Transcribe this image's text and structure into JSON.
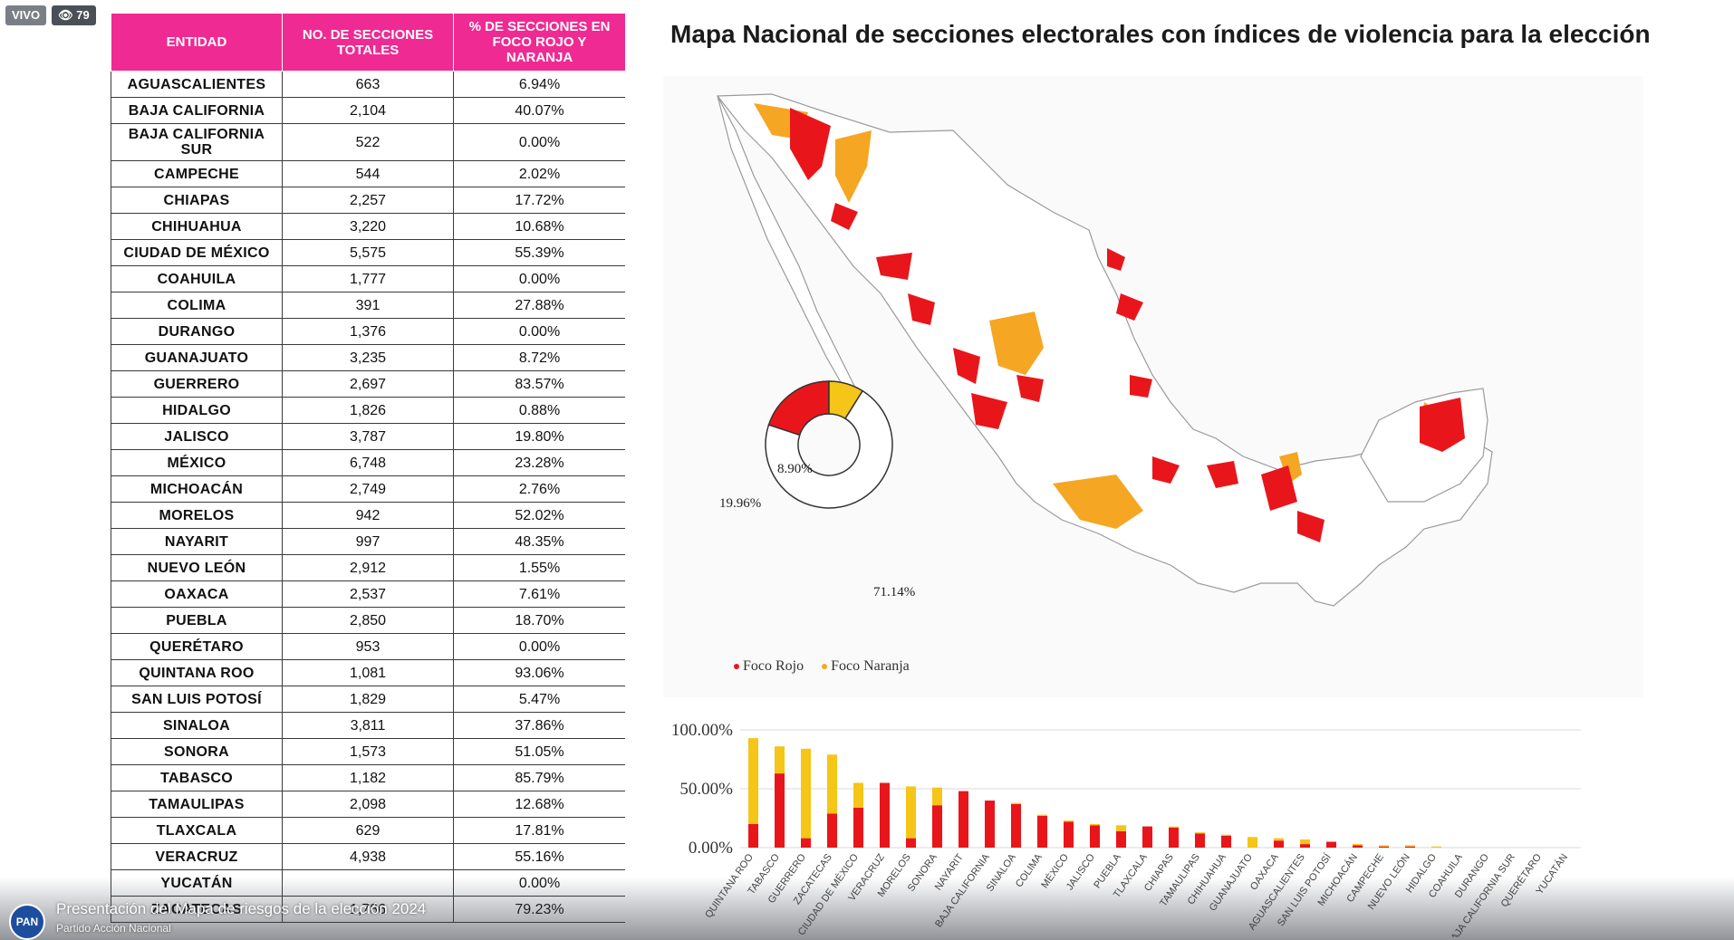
{
  "live": {
    "label": "VIVO",
    "viewers": "79",
    "viewers_icon": "eye-icon"
  },
  "table": {
    "headers": [
      "ENTIDAD",
      "NO. DE SECCIONES TOTALES",
      "% DE SECCIONES EN FOCO ROJO Y NARANJA"
    ],
    "rows": [
      [
        "AGUASCALIENTES",
        "663",
        "6.94%"
      ],
      [
        "BAJA CALIFORNIA",
        "2,104",
        "40.07%"
      ],
      [
        "BAJA CALIFORNIA SUR",
        "522",
        "0.00%"
      ],
      [
        "CAMPECHE",
        "544",
        "2.02%"
      ],
      [
        "CHIAPAS",
        "2,257",
        "17.72%"
      ],
      [
        "CHIHUAHUA",
        "3,220",
        "10.68%"
      ],
      [
        "CIUDAD DE MÉXICO",
        "5,575",
        "55.39%"
      ],
      [
        "COAHUILA",
        "1,777",
        "0.00%"
      ],
      [
        "COLIMA",
        "391",
        "27.88%"
      ],
      [
        "DURANGO",
        "1,376",
        "0.00%"
      ],
      [
        "GUANAJUATO",
        "3,235",
        "8.72%"
      ],
      [
        "GUERRERO",
        "2,697",
        "83.57%"
      ],
      [
        "HIDALGO",
        "1,826",
        "0.88%"
      ],
      [
        "JALISCO",
        "3,787",
        "19.80%"
      ],
      [
        "MÉXICO",
        "6,748",
        "23.28%"
      ],
      [
        "MICHOACÁN",
        "2,749",
        "2.76%"
      ],
      [
        "MORELOS",
        "942",
        "52.02%"
      ],
      [
        "NAYARIT",
        "997",
        "48.35%"
      ],
      [
        "NUEVO LEÓN",
        "2,912",
        "1.55%"
      ],
      [
        "OAXACA",
        "2,537",
        "7.61%"
      ],
      [
        "PUEBLA",
        "2,850",
        "18.70%"
      ],
      [
        "QUERÉTARO",
        "953",
        "0.00%"
      ],
      [
        "QUINTANA ROO",
        "1,081",
        "93.06%"
      ],
      [
        "SAN LUIS POTOSÍ",
        "1,829",
        "5.47%"
      ],
      [
        "SINALOA",
        "3,811",
        "37.86%"
      ],
      [
        "SONORA",
        "1,573",
        "51.05%"
      ],
      [
        "TABASCO",
        "1,182",
        "85.79%"
      ],
      [
        "TAMAULIPAS",
        "2,098",
        "12.68%"
      ],
      [
        "TLAXCALA",
        "629",
        "17.81%"
      ],
      [
        "VERACRUZ",
        "4,938",
        "55.16%"
      ],
      [
        "YUCATÁN",
        "",
        "0.00%"
      ],
      [
        "ZACATECAS",
        "1,786",
        "79.23%"
      ]
    ]
  },
  "map": {
    "title": "Mapa Nacional de secciones electorales con índices de violencia para la elección",
    "legend": [
      {
        "label": "Foco Rojo",
        "color": "#e8161b"
      },
      {
        "label": "Foco Naranja",
        "color": "#f5a623"
      }
    ]
  },
  "chart_data": [
    {
      "type": "pie",
      "labels": [
        "Foco Rojo",
        "Foco Naranja",
        ""
      ],
      "values": [
        19.96,
        8.9,
        71.14
      ],
      "value_labels": [
        "19.96%",
        "8.90%",
        "71.14%"
      ],
      "colors": [
        "#e8161b",
        "#f5c518",
        "#ffffff"
      ]
    },
    {
      "type": "bar",
      "stacked": true,
      "categories": [
        "QUINTANA ROO",
        "TABASCO",
        "GUERRERO",
        "ZACATECAS",
        "CIUDAD DE MÉXICO",
        "VERACRUZ",
        "MORELOS",
        "SONORA",
        "NAYARIT",
        "BAJA CALIFORNIA",
        "SINALOA",
        "COLIMA",
        "MÉXICO",
        "JALISCO",
        "PUEBLA",
        "TLAXCALA",
        "CHIAPAS",
        "TAMAULIPAS",
        "CHIHUAHUA",
        "GUANAJUATO",
        "OAXACA",
        "AGUASCALIENTES",
        "SAN LUIS POTOSÍ",
        "MICHOACÁN",
        "CAMPECHE",
        "NUEVO LEÓN",
        "HIDALGO",
        "COAHUILA",
        "DURANGO",
        "BAJA CALIFORNIA SUR",
        "QUERÉTARO",
        "YUCATÁN"
      ],
      "series": [
        {
          "name": "Foco Rojo",
          "color": "#e8161b",
          "values": [
            20,
            63,
            8,
            29,
            34,
            55,
            8,
            36,
            48,
            40,
            37,
            27,
            22,
            19,
            14,
            18,
            17,
            12,
            10,
            0,
            6,
            3,
            5,
            2,
            1,
            1,
            0,
            0,
            0,
            0,
            0,
            0
          ]
        },
        {
          "name": "Foco Naranja",
          "color": "#f5c518",
          "values": [
            73,
            23,
            76,
            50,
            21,
            0,
            44,
            15,
            0,
            0,
            1,
            1,
            1,
            1,
            5,
            0,
            1,
            1,
            1,
            9,
            2,
            4,
            0,
            1,
            1,
            1,
            1,
            0,
            0,
            0,
            0,
            0
          ]
        }
      ],
      "yticks": [
        "100.00%",
        "50.00%",
        "0.00%"
      ],
      "ylim": [
        0,
        100
      ]
    }
  ],
  "footer": {
    "logo": "PAN",
    "title": "Presentación del Mapa de riesgos de la elección 2024",
    "subtitle": "Partido Acción Nacional"
  }
}
